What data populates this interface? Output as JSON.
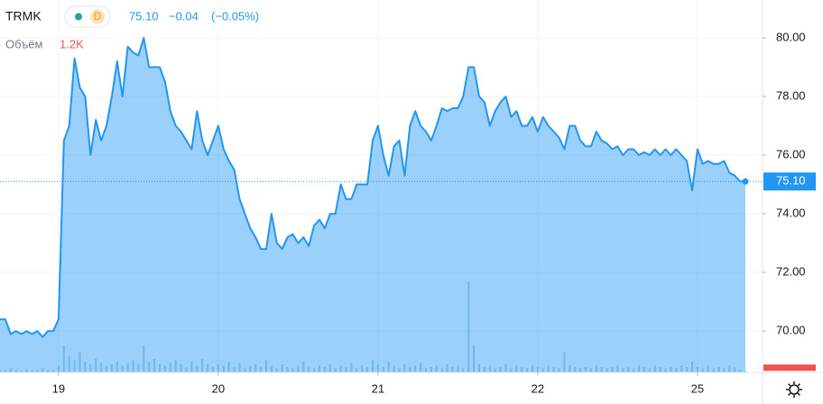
{
  "chart_data": {
    "type": "area",
    "symbol": "TRMK",
    "interval": "D",
    "price_label": "75.10",
    "change": "−0.04",
    "change_pct": "(−0.05%)",
    "volume_title": "Объём",
    "volume_label": "1.2K",
    "last_value": 75.1,
    "categories": [
      null,
      null,
      null,
      null,
      null,
      null,
      null,
      null,
      null,
      null,
      null,
      "19",
      null,
      null,
      null,
      null,
      null,
      null,
      null,
      null,
      null,
      null,
      null,
      null,
      null,
      null,
      null,
      null,
      null,
      null,
      null,
      null,
      null,
      null,
      null,
      null,
      null,
      null,
      null,
      null,
      null,
      "20",
      null,
      null,
      null,
      null,
      null,
      null,
      null,
      null,
      null,
      null,
      null,
      null,
      null,
      null,
      null,
      null,
      null,
      null,
      null,
      null,
      null,
      null,
      null,
      null,
      null,
      null,
      null,
      null,
      null,
      "21",
      null,
      null,
      null,
      null,
      null,
      null,
      null,
      null,
      null,
      null,
      null,
      null,
      null,
      null,
      null,
      null,
      null,
      null,
      null,
      null,
      null,
      null,
      null,
      null,
      null,
      null,
      null,
      null,
      null,
      "22",
      null,
      null,
      null,
      null,
      null,
      null,
      null,
      null,
      null,
      null,
      null,
      null,
      null,
      null,
      null,
      null,
      null,
      null,
      null,
      null,
      null,
      null,
      null,
      null,
      null,
      null,
      null,
      null,
      null,
      "25",
      null,
      null,
      null,
      null,
      null,
      null,
      null,
      null,
      null
    ],
    "series": [
      {
        "color": "#2196f3",
        "values": [
          70.4,
          70.4,
          69.9,
          70.0,
          69.9,
          70.0,
          69.9,
          70.0,
          69.8,
          70.0,
          70.0,
          70.4,
          76.5,
          77.0,
          79.3,
          78.3,
          78.0,
          76.0,
          77.2,
          76.5,
          77.0,
          78.0,
          79.2,
          78.0,
          79.7,
          79.5,
          79.4,
          80.0,
          79.0,
          79.0,
          79.0,
          78.5,
          77.5,
          77.0,
          76.8,
          76.5,
          76.2,
          77.5,
          76.5,
          76.0,
          76.5,
          77.0,
          76.2,
          75.8,
          75.5,
          74.5,
          74.0,
          73.5,
          73.2,
          72.8,
          72.8,
          74.0,
          73.0,
          72.8,
          73.2,
          73.3,
          73.0,
          73.2,
          72.9,
          73.6,
          73.8,
          73.5,
          74.0,
          74.0,
          75.0,
          74.5,
          74.5,
          75.0,
          75.0,
          75.0,
          76.5,
          77.0,
          76.0,
          75.3,
          76.3,
          76.5,
          75.3,
          77.0,
          77.5,
          77.0,
          76.8,
          76.5,
          77.0,
          77.6,
          77.5,
          77.6,
          77.6,
          78.0,
          79.0,
          79.0,
          78.0,
          77.8,
          77.0,
          77.5,
          77.8,
          78.0,
          77.3,
          77.5,
          77.0,
          77.0,
          77.3,
          76.8,
          77.3,
          77.0,
          76.8,
          76.6,
          76.2,
          77.0,
          77.0,
          76.5,
          76.3,
          76.3,
          76.8,
          76.5,
          76.4,
          76.2,
          76.3,
          76.0,
          76.2,
          76.2,
          76.0,
          76.1,
          76.0,
          76.2,
          76.0,
          76.2,
          76.0,
          76.2,
          76.0,
          75.8,
          74.8,
          76.2,
          75.7,
          75.8,
          75.7,
          75.7,
          75.8,
          75.4,
          75.3,
          75.1,
          75.1
        ]
      },
      {
        "color": "#9cc4ea",
        "axis": "y2",
        "values": [
          2000,
          1500,
          3000,
          2000,
          1000,
          2500,
          1500,
          2000,
          3000,
          1500,
          2000,
          5000,
          20000,
          12000,
          9000,
          15000,
          8000,
          6000,
          10000,
          7000,
          5000,
          6000,
          8000,
          5000,
          7000,
          9000,
          6000,
          20000,
          8000,
          10000,
          6000,
          5000,
          7000,
          9000,
          6000,
          4000,
          8000,
          5000,
          10000,
          6000,
          4000,
          6000,
          5000,
          8000,
          4000,
          7000,
          3000,
          5000,
          6000,
          4000,
          9000,
          5000,
          3000,
          6000,
          4000,
          3000,
          5000,
          8000,
          4000,
          3000,
          5000,
          4000,
          6000,
          3000,
          5000,
          4000,
          7000,
          3000,
          5000,
          4000,
          9000,
          6000,
          4000,
          8000,
          5000,
          3000,
          6000,
          4000,
          5000,
          7000,
          3000,
          4000,
          5000,
          3000,
          6000,
          4000,
          5000,
          3000,
          67000,
          20000,
          6000,
          4000,
          5000,
          3000,
          4000,
          6000,
          3000,
          5000,
          4000,
          3000,
          5000,
          4000,
          3000,
          5000,
          4000,
          3000,
          15000,
          5000,
          4000,
          3000,
          4000,
          3000,
          5000,
          4000,
          3000,
          4000,
          5000,
          3000,
          4000,
          3000,
          5000,
          4000,
          3000,
          5000,
          4000,
          3000,
          4000,
          3000,
          5000,
          4000,
          8000,
          4000,
          3000,
          5000,
          3000,
          4000,
          3000,
          5000,
          4000,
          2000,
          1200
        ]
      }
    ],
    "ylim": [
      68.59,
      81.29
    ],
    "yticks": [
      {
        "value": 70,
        "label": "70.00"
      },
      {
        "value": 72,
        "label": "72.00"
      },
      {
        "value": 74,
        "label": "74.00"
      },
      {
        "value": 76,
        "label": "76.00"
      },
      {
        "value": 78,
        "label": "78.00"
      },
      {
        "value": 80,
        "label": "80.00"
      }
    ],
    "y2lim": [
      0,
      100000
    ],
    "grid": true
  }
}
